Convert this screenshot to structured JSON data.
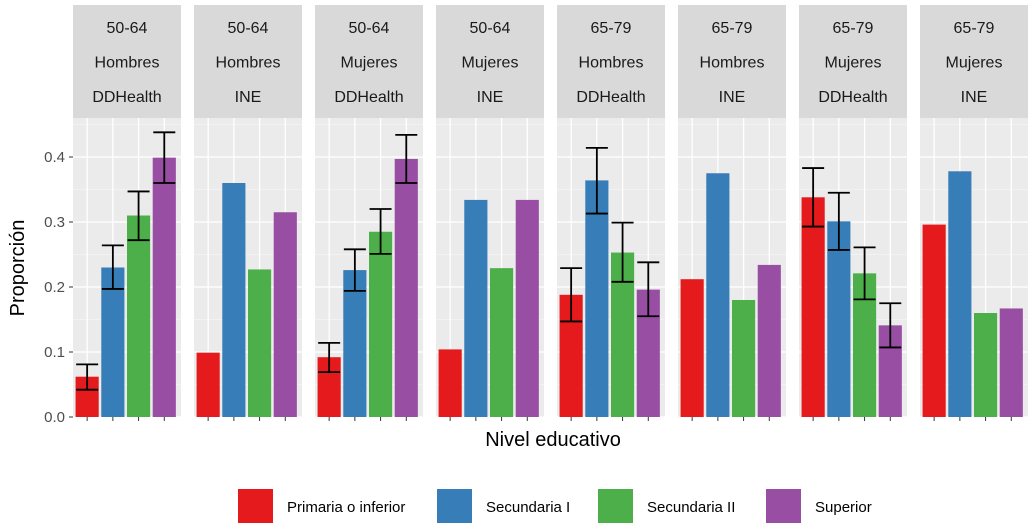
{
  "chart_data": {
    "type": "bar",
    "xlabel": "Nivel educativo",
    "ylabel": "Proporción",
    "ylim": [
      0,
      0.46
    ],
    "y_ticks": [
      "0.0",
      "0.1",
      "0.2",
      "0.3",
      "0.4"
    ],
    "grid": true,
    "legend_position": "bottom",
    "categories": [
      "Primaria o inferior",
      "Secundaria I",
      "Secundaria II",
      "Superior"
    ],
    "colors": [
      "#E41A1C",
      "#377EB8",
      "#4DAF4A",
      "#984EA3"
    ],
    "panels": [
      {
        "age": "50-64",
        "sex": "Hombres",
        "source": "DDHealth",
        "values": [
          0.062,
          0.23,
          0.31,
          0.399
        ],
        "errors": [
          [
            0.042,
            0.081
          ],
          [
            0.197,
            0.264
          ],
          [
            0.272,
            0.347
          ],
          [
            0.36,
            0.438
          ]
        ]
      },
      {
        "age": "50-64",
        "sex": "Hombres",
        "source": "INE",
        "values": [
          0.099,
          0.36,
          0.227,
          0.315
        ],
        "errors": null
      },
      {
        "age": "50-64",
        "sex": "Mujeres",
        "source": "DDHealth",
        "values": [
          0.092,
          0.226,
          0.285,
          0.397
        ],
        "errors": [
          [
            0.069,
            0.114
          ],
          [
            0.194,
            0.258
          ],
          [
            0.251,
            0.32
          ],
          [
            0.36,
            0.434
          ]
        ]
      },
      {
        "age": "50-64",
        "sex": "Mujeres",
        "source": "INE",
        "values": [
          0.104,
          0.334,
          0.229,
          0.334
        ],
        "errors": null
      },
      {
        "age": "65-79",
        "sex": "Hombres",
        "source": "DDHealth",
        "values": [
          0.188,
          0.364,
          0.253,
          0.196
        ],
        "errors": [
          [
            0.147,
            0.229
          ],
          [
            0.313,
            0.414
          ],
          [
            0.208,
            0.299
          ],
          [
            0.155,
            0.238
          ]
        ]
      },
      {
        "age": "65-79",
        "sex": "Hombres",
        "source": "INE",
        "values": [
          0.212,
          0.375,
          0.18,
          0.234
        ],
        "errors": null
      },
      {
        "age": "65-79",
        "sex": "Mujeres",
        "source": "DDHealth",
        "values": [
          0.338,
          0.301,
          0.221,
          0.141
        ],
        "errors": [
          [
            0.293,
            0.383
          ],
          [
            0.257,
            0.345
          ],
          [
            0.181,
            0.261
          ],
          [
            0.107,
            0.175
          ]
        ]
      },
      {
        "age": "65-79",
        "sex": "Mujeres",
        "source": "INE",
        "values": [
          0.296,
          0.378,
          0.16,
          0.167
        ],
        "errors": null
      }
    ]
  }
}
